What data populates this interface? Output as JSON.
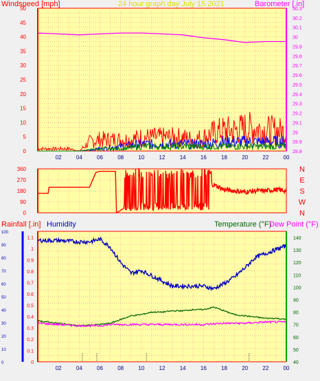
{
  "title": "24 hour graph day   July 15 2021",
  "colors": {
    "background": "#f0f0f0",
    "plot_bg": "#ffffa8",
    "grid": "#ff9a9a",
    "axis": "#ff0000",
    "wind_speed": "#ff0000",
    "wind_gust": "#0000ff",
    "wind_avg": "#008000",
    "barometer": "#ff00ff",
    "direction": "#ff0000",
    "humidity": "#0000c0",
    "temperature": "#006400",
    "dew_point": "#ff00ff",
    "rain": "#0000ff"
  },
  "hour_labels": [
    "02",
    "04",
    "06",
    "08",
    "10",
    "12",
    "14",
    "16",
    "18",
    "20",
    "22",
    "00"
  ],
  "panel1": {
    "left_label": "Windspeed [mph]",
    "right_label": "Barometer [.in]",
    "left_ticks": [
      "0",
      "5",
      "10",
      "15",
      "20",
      "25",
      "30",
      "35",
      "40",
      "45",
      "50"
    ],
    "right_ticks": [
      "28.8",
      "28.9",
      "29",
      "29.1",
      "29.2",
      "29.3",
      "29.4",
      "29.5",
      "29.6",
      "29.7",
      "29.8",
      "29.9",
      "30",
      "30.1",
      "30.2",
      "30.3"
    ]
  },
  "panel2": {
    "left_ticks": [
      "0",
      "90",
      "180",
      "270",
      "360"
    ],
    "compass": [
      "N",
      "W",
      "S",
      "E",
      "N"
    ]
  },
  "panel3": {
    "rain_label": "Rainfall [.in]",
    "humidity_label": "Humidity",
    "temp_label": "Temperature (°F)",
    "dew_label": "Dew Point (°F)",
    "rain_ticks": [
      "0",
      "0.1",
      "0.2",
      "0.3",
      "0.4",
      "0.5",
      "0.6",
      "0.7",
      "0.8",
      "0.9",
      "1",
      "1.1"
    ],
    "humidity_ticks": [
      "0",
      "10",
      "20",
      "30",
      "40",
      "50",
      "60",
      "70",
      "80",
      "90",
      "100"
    ],
    "temp_ticks": [
      "40",
      "50",
      "60",
      "70",
      "80",
      "90",
      "100",
      "110",
      "120",
      "130",
      "140"
    ]
  },
  "chart_data": [
    {
      "type": "line",
      "title": "24 hour graph day   July 15 2021",
      "ylabel": "Windspeed [mph]",
      "y2label": "Barometer [.in]",
      "ylim": [
        0,
        50
      ],
      "y2lim": [
        28.8,
        30.3
      ],
      "x_unit": "hour",
      "series": [
        {
          "name": "Barometer [.in]",
          "axis": "right",
          "x": [
            0,
            2,
            4,
            6,
            8,
            10,
            12,
            14,
            16,
            18,
            20,
            22,
            24
          ],
          "values": [
            30.04,
            30.03,
            30.02,
            30.03,
            30.04,
            30.04,
            30.03,
            30.02,
            29.99,
            29.97,
            29.94,
            29.95,
            29.95
          ]
        },
        {
          "axis": "left",
          "x": [
            0,
            2,
            3,
            4,
            5,
            6,
            7,
            8,
            9,
            10,
            11,
            12,
            13,
            14,
            15,
            16,
            17,
            18,
            19,
            20,
            21,
            22,
            23,
            24
          ],
          "values": [
            1,
            1,
            1,
            0,
            4,
            5,
            5,
            5,
            5,
            6,
            6,
            6,
            6,
            6,
            5,
            6,
            8,
            9,
            9,
            10,
            10,
            9,
            9,
            8
          ]
        },
        {
          "axis": "left",
          "x": [
            0,
            4,
            6,
            8,
            10,
            12,
            14,
            16,
            18,
            20,
            22,
            24
          ],
          "values": [
            0,
            0,
            1,
            2,
            3,
            3,
            3,
            3,
            4,
            4,
            4,
            4
          ]
        },
        {
          "axis": "left",
          "x": [
            0,
            4,
            6,
            8,
            10,
            12,
            14,
            16,
            18,
            20,
            22,
            24
          ],
          "values": [
            0,
            0,
            1,
            1,
            2,
            2,
            2,
            2,
            2,
            2,
            2,
            2
          ]
        }
      ]
    },
    {
      "type": "line",
      "ylim": [
        0,
        360
      ],
      "x_unit": "hour",
      "series": [
        {
          "axis": "left",
          "x": [
            0,
            1,
            1.1,
            5,
            5.6,
            6,
            7.5,
            7.6,
            8,
            9,
            10,
            11,
            12,
            13,
            14,
            15,
            16,
            17,
            18,
            19,
            20,
            21,
            22,
            23,
            24
          ],
          "values": [
            160,
            160,
            210,
            210,
            330,
            340,
            340,
            0,
            20,
            80,
            200,
            120,
            250,
            150,
            230,
            150,
            250,
            230,
            190,
            180,
            170,
            180,
            180,
            190,
            180
          ]
        }
      ]
    },
    {
      "type": "line",
      "ylabel": "Rainfall [.in]",
      "y2label": "Temperature (°F)",
      "ylim": [
        0,
        1.15
      ],
      "humidity_lim": [
        0,
        100
      ],
      "y2lim": [
        40,
        145
      ],
      "x_unit": "hour",
      "series": [
        {
          "name": "Humidity",
          "axis": "humidity",
          "x": [
            0,
            2,
            4,
            5,
            6,
            7,
            8,
            9,
            10,
            11,
            12,
            13,
            14,
            15,
            16,
            17,
            18,
            19,
            20,
            21,
            22,
            23,
            24
          ],
          "values": [
            93,
            93,
            92,
            92,
            94,
            88,
            76,
            68,
            70,
            66,
            62,
            58,
            58,
            58,
            58,
            56,
            60,
            65,
            72,
            80,
            83,
            86,
            89
          ]
        },
        {
          "name": "Temperature (°F)",
          "axis": "right",
          "x": [
            0,
            2,
            4,
            6,
            7,
            8,
            9,
            10,
            11,
            12,
            13,
            14,
            15,
            16,
            17,
            18,
            19,
            20,
            21,
            22,
            23,
            24
          ],
          "values": [
            73,
            71,
            69,
            70,
            71,
            74,
            77,
            78,
            80,
            80,
            81,
            81,
            82,
            82,
            84,
            81,
            78,
            77,
            76,
            75,
            75,
            74
          ]
        },
        {
          "name": "Dew Point (°F)",
          "axis": "right",
          "x": [
            0,
            2,
            4,
            6,
            7,
            8,
            10,
            12,
            14,
            16,
            18,
            20,
            22,
            24
          ],
          "values": [
            71,
            70,
            69,
            69,
            70,
            70,
            70,
            70,
            70,
            70,
            71,
            71,
            72,
            72
          ]
        },
        {
          "name": "Rainfall [.in]",
          "axis": "left",
          "x": [
            0,
            24
          ],
          "values": [
            0,
            0
          ]
        }
      ]
    }
  ]
}
